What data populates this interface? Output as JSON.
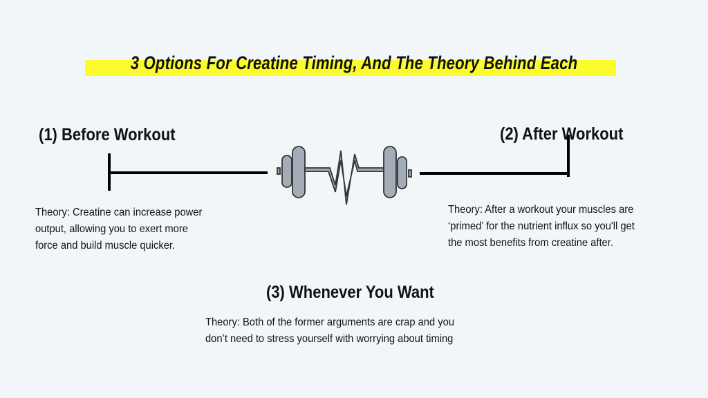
{
  "title": "3 Options For Creatine Timing, And The Theory Behind Each",
  "highlight_color": "#fbfb2e",
  "icon": "dumbbell-heartbeat-icon",
  "options": [
    {
      "heading": "(1) Before Workout",
      "theory_lines": [
        "Theory: Creatine can increase power",
        "output, allowing you to exert more",
        "force and build muscle quicker."
      ]
    },
    {
      "heading": "(2) After Workout",
      "theory_lines": [
        "Theory: After a workout your muscles are",
        "‘primed’ for the nutrient influx so you'll get",
        "the most benefits from creatine after."
      ]
    },
    {
      "heading": "(3) Whenever You Want",
      "theory_lines": [
        "Theory: Both of the former arguments are crap and you",
        "don’t need to stress yourself with worrying about timing"
      ]
    }
  ]
}
